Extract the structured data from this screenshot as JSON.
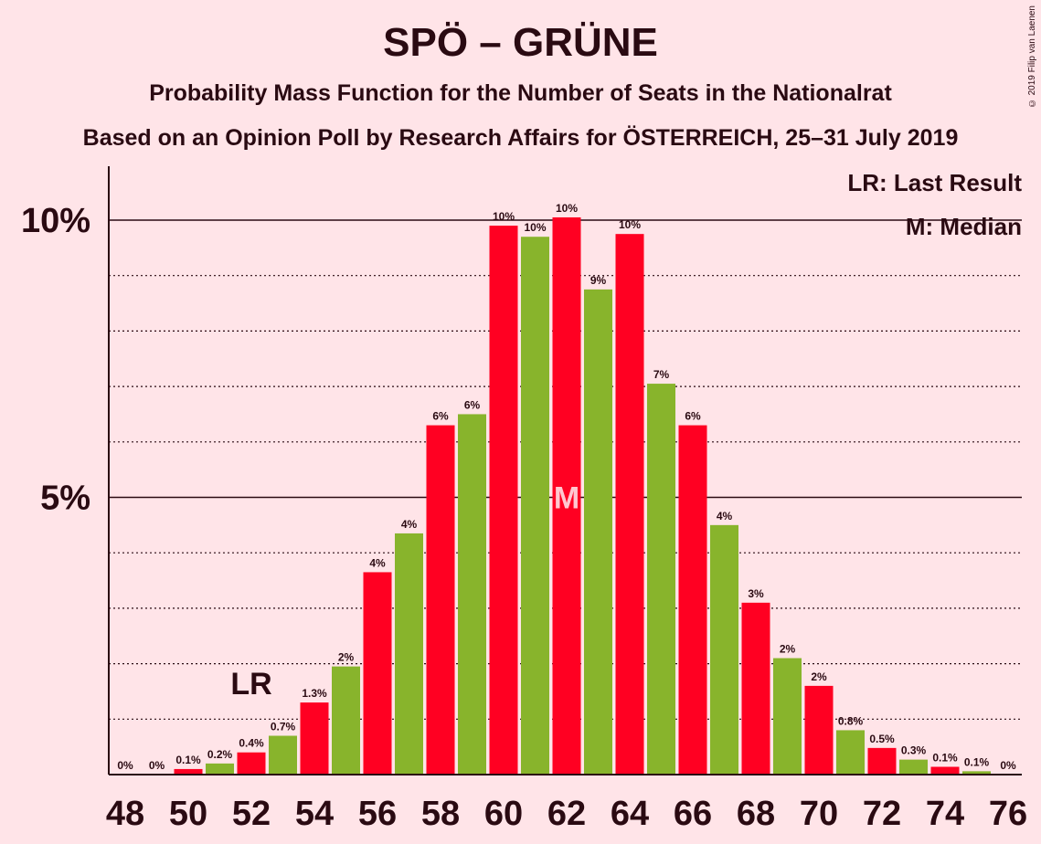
{
  "title": "SPÖ – GRÜNE",
  "subtitle1": "Probability Mass Function for the Number of Seats in the Nationalrat",
  "subtitle2": "Based on an Opinion Poll by Research Affairs for ÖSTERREICH, 25–31 July 2019",
  "copyright": "© 2019 Filip van Laenen",
  "legend": {
    "lr": "LR: Last Result",
    "m": "M: Median"
  },
  "colors": {
    "background": "#FFE4E8",
    "red": "#FF0022",
    "green": "#88B42C",
    "text": "#2a0a12"
  },
  "chart_data": {
    "type": "bar",
    "ylim": [
      0,
      11
    ],
    "y_ticks": [
      {
        "value": 5,
        "label": "5%"
      },
      {
        "value": 10,
        "label": "10%"
      }
    ],
    "x_tick_labels": [
      "48",
      "50",
      "52",
      "54",
      "56",
      "58",
      "60",
      "62",
      "64",
      "66",
      "68",
      "70",
      "72",
      "74",
      "76"
    ],
    "last_result_seat": 52,
    "last_result_label": "LR",
    "median_seat": 62,
    "median_label": "M",
    "bars": [
      {
        "seat": 48,
        "value": 0,
        "label": "0%",
        "color": "red"
      },
      {
        "seat": 49,
        "value": 0,
        "label": "0%",
        "color": "green"
      },
      {
        "seat": 50,
        "value": 0.1,
        "label": "0.1%",
        "color": "red"
      },
      {
        "seat": 51,
        "value": 0.2,
        "label": "0.2%",
        "color": "green"
      },
      {
        "seat": 52,
        "value": 0.4,
        "label": "0.4%",
        "color": "red"
      },
      {
        "seat": 53,
        "value": 0.7,
        "label": "0.7%",
        "color": "green"
      },
      {
        "seat": 54,
        "value": 1.3,
        "label": "1.3%",
        "color": "red"
      },
      {
        "seat": 55,
        "value": 1.95,
        "label": "2%",
        "color": "green"
      },
      {
        "seat": 56,
        "value": 3.65,
        "label": "4%",
        "color": "red"
      },
      {
        "seat": 57,
        "value": 4.35,
        "label": "4%",
        "color": "green"
      },
      {
        "seat": 58,
        "value": 6.3,
        "label": "6%",
        "color": "red"
      },
      {
        "seat": 59,
        "value": 6.5,
        "label": "6%",
        "color": "green"
      },
      {
        "seat": 60,
        "value": 9.9,
        "label": "10%",
        "color": "red"
      },
      {
        "seat": 61,
        "value": 9.7,
        "label": "10%",
        "color": "green"
      },
      {
        "seat": 62,
        "value": 10.05,
        "label": "10%",
        "color": "red"
      },
      {
        "seat": 63,
        "value": 8.75,
        "label": "9%",
        "color": "green"
      },
      {
        "seat": 64,
        "value": 9.75,
        "label": "10%",
        "color": "red"
      },
      {
        "seat": 65,
        "value": 7.05,
        "label": "7%",
        "color": "green"
      },
      {
        "seat": 66,
        "value": 6.3,
        "label": "6%",
        "color": "red"
      },
      {
        "seat": 67,
        "value": 4.5,
        "label": "4%",
        "color": "green"
      },
      {
        "seat": 68,
        "value": 3.1,
        "label": "3%",
        "color": "red"
      },
      {
        "seat": 69,
        "value": 2.1,
        "label": "2%",
        "color": "green"
      },
      {
        "seat": 70,
        "value": 1.6,
        "label": "2%",
        "color": "red"
      },
      {
        "seat": 71,
        "value": 0.8,
        "label": "0.8%",
        "color": "green"
      },
      {
        "seat": 72,
        "value": 0.48,
        "label": "0.5%",
        "color": "red"
      },
      {
        "seat": 73,
        "value": 0.27,
        "label": "0.3%",
        "color": "green"
      },
      {
        "seat": 74,
        "value": 0.14,
        "label": "0.1%",
        "color": "red"
      },
      {
        "seat": 75,
        "value": 0.06,
        "label": "0.1%",
        "color": "green"
      },
      {
        "seat": 76,
        "value": 0,
        "label": "0%",
        "color": "red"
      }
    ]
  }
}
